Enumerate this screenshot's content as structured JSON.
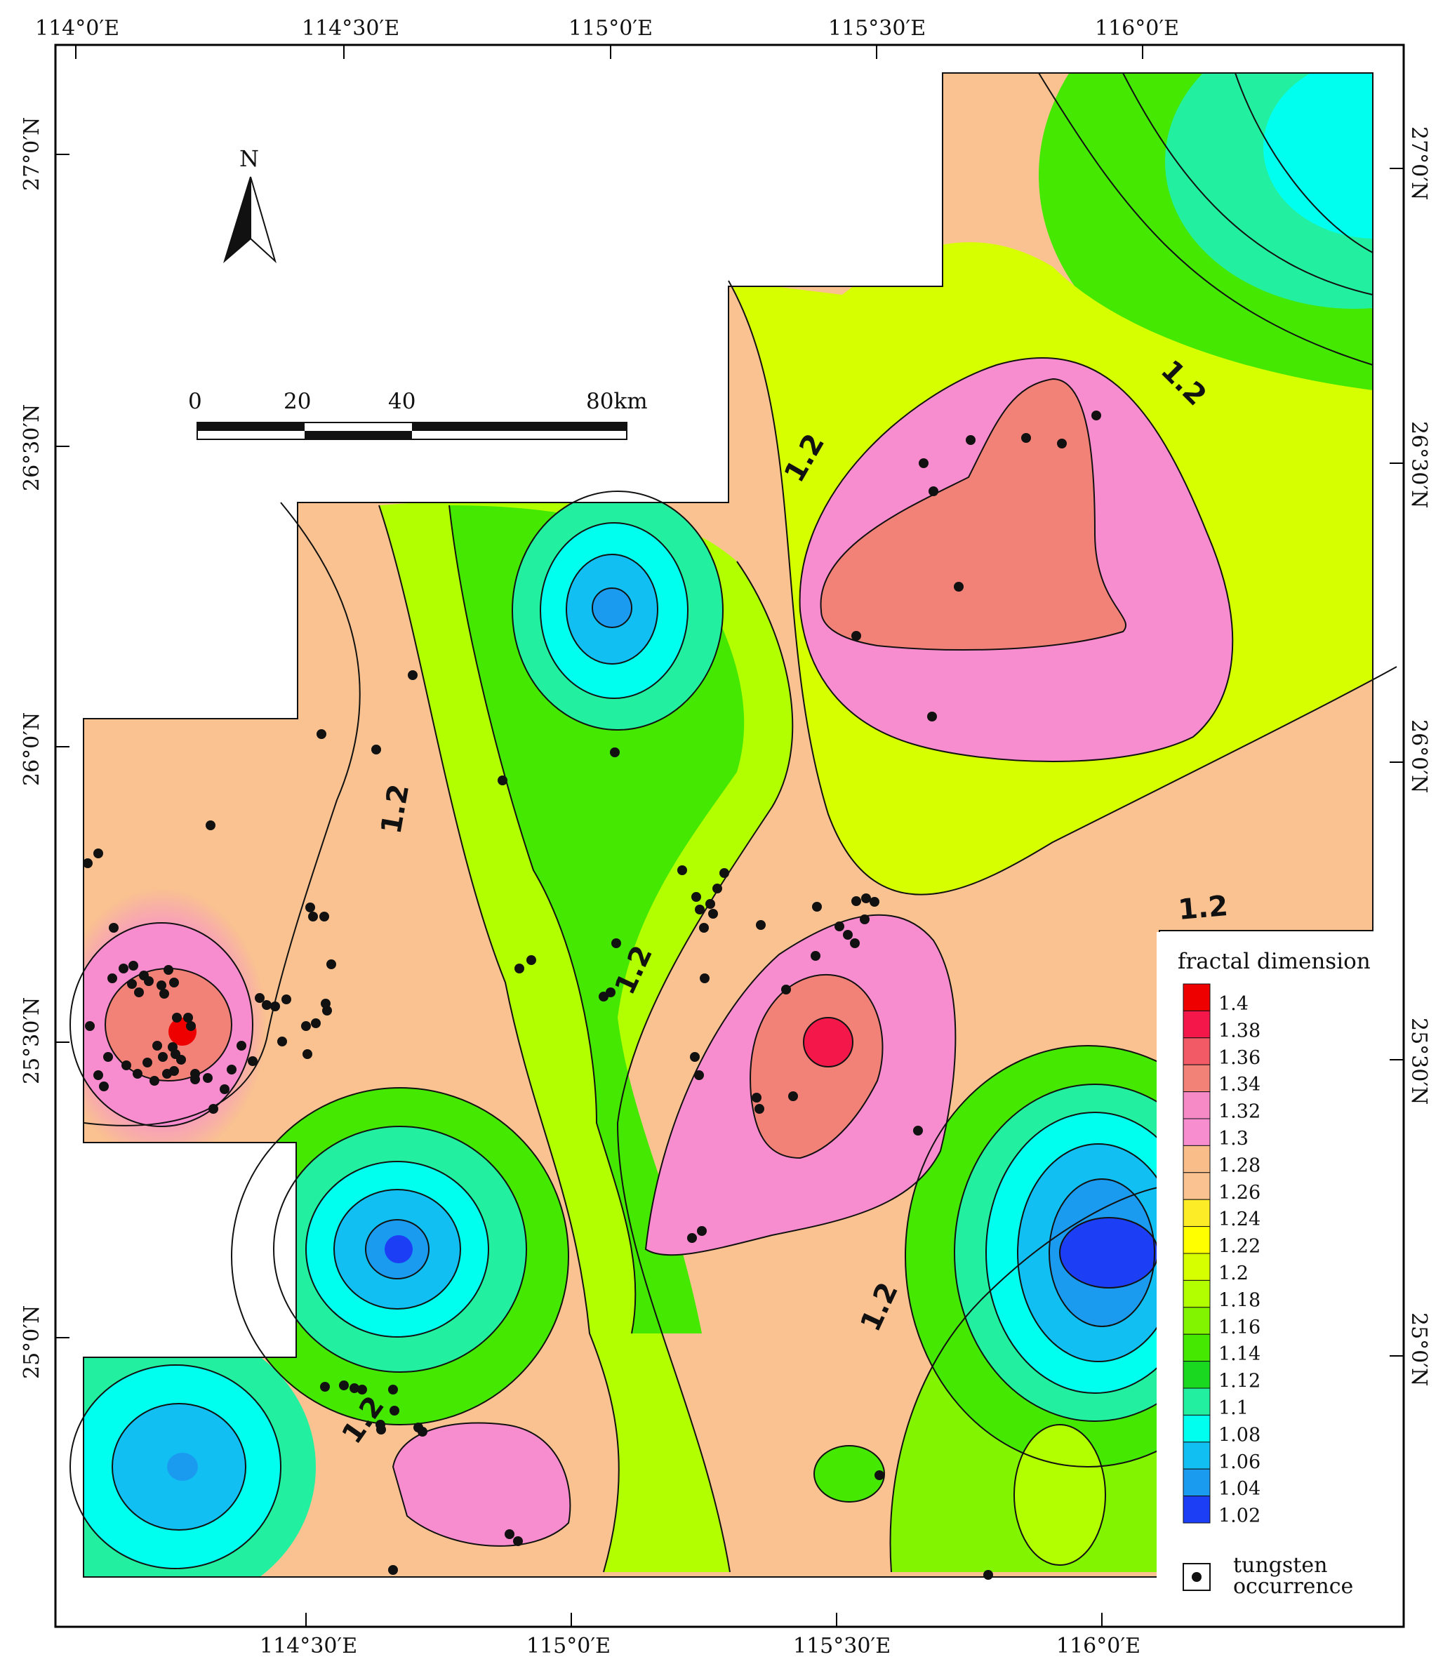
{
  "map": {
    "top_lon_labels": [
      "114°0′E",
      "114°30′E",
      "115°0′E",
      "115°30′E",
      "116°0′E"
    ],
    "bottom_lon_labels": [
      "114°30′E",
      "115°0′E",
      "115°30′E",
      "116°0′E"
    ],
    "left_lat_labels": [
      "27°0′N",
      "26°30′N",
      "26°0′N",
      "25°30′N",
      "25°0′N"
    ],
    "right_lat_labels": [
      "27°0′N",
      "26°30′N",
      "26°0′N",
      "25°30′N",
      "25°0′N"
    ],
    "north_label": "N",
    "scale_labels": [
      "0",
      "20",
      "40",
      "80km"
    ],
    "contour_labels": [
      "1.2",
      "1.2",
      "1.2",
      "1.2",
      "1.2",
      "1.2",
      "1.2"
    ]
  },
  "legend": {
    "title": "fractal dimension",
    "items": [
      {
        "value": "1.4",
        "color": "#ee0000"
      },
      {
        "value": "1.38",
        "color": "#f4174a"
      },
      {
        "value": "1.36",
        "color": "#f25a66"
      },
      {
        "value": "1.34",
        "color": "#f28278"
      },
      {
        "value": "1.32",
        "color": "#f58ac6"
      },
      {
        "value": "1.3",
        "color": "#f78ccf"
      },
      {
        "value": "1.28",
        "color": "#f8bd88"
      },
      {
        "value": "1.26",
        "color": "#f9c290"
      },
      {
        "value": "1.24",
        "color": "#fcec28"
      },
      {
        "value": "1.22",
        "color": "#ffff00"
      },
      {
        "value": "1.2",
        "color": "#d6ff00"
      },
      {
        "value": "1.18",
        "color": "#b2ff00"
      },
      {
        "value": "1.16",
        "color": "#82f400"
      },
      {
        "value": "1.14",
        "color": "#44e800"
      },
      {
        "value": "1.12",
        "color": "#1ad820"
      },
      {
        "value": "1.1",
        "color": "#22f0a0"
      },
      {
        "value": "1.08",
        "color": "#00ffee"
      },
      {
        "value": "1.06",
        "color": "#12bff2"
      },
      {
        "value": "1.04",
        "color": "#1a9bf0"
      },
      {
        "value": "1.02",
        "color": "#1c3ef4"
      }
    ],
    "occurrence_label_1": "tungsten",
    "occurrence_label_2": "occurrence"
  }
}
